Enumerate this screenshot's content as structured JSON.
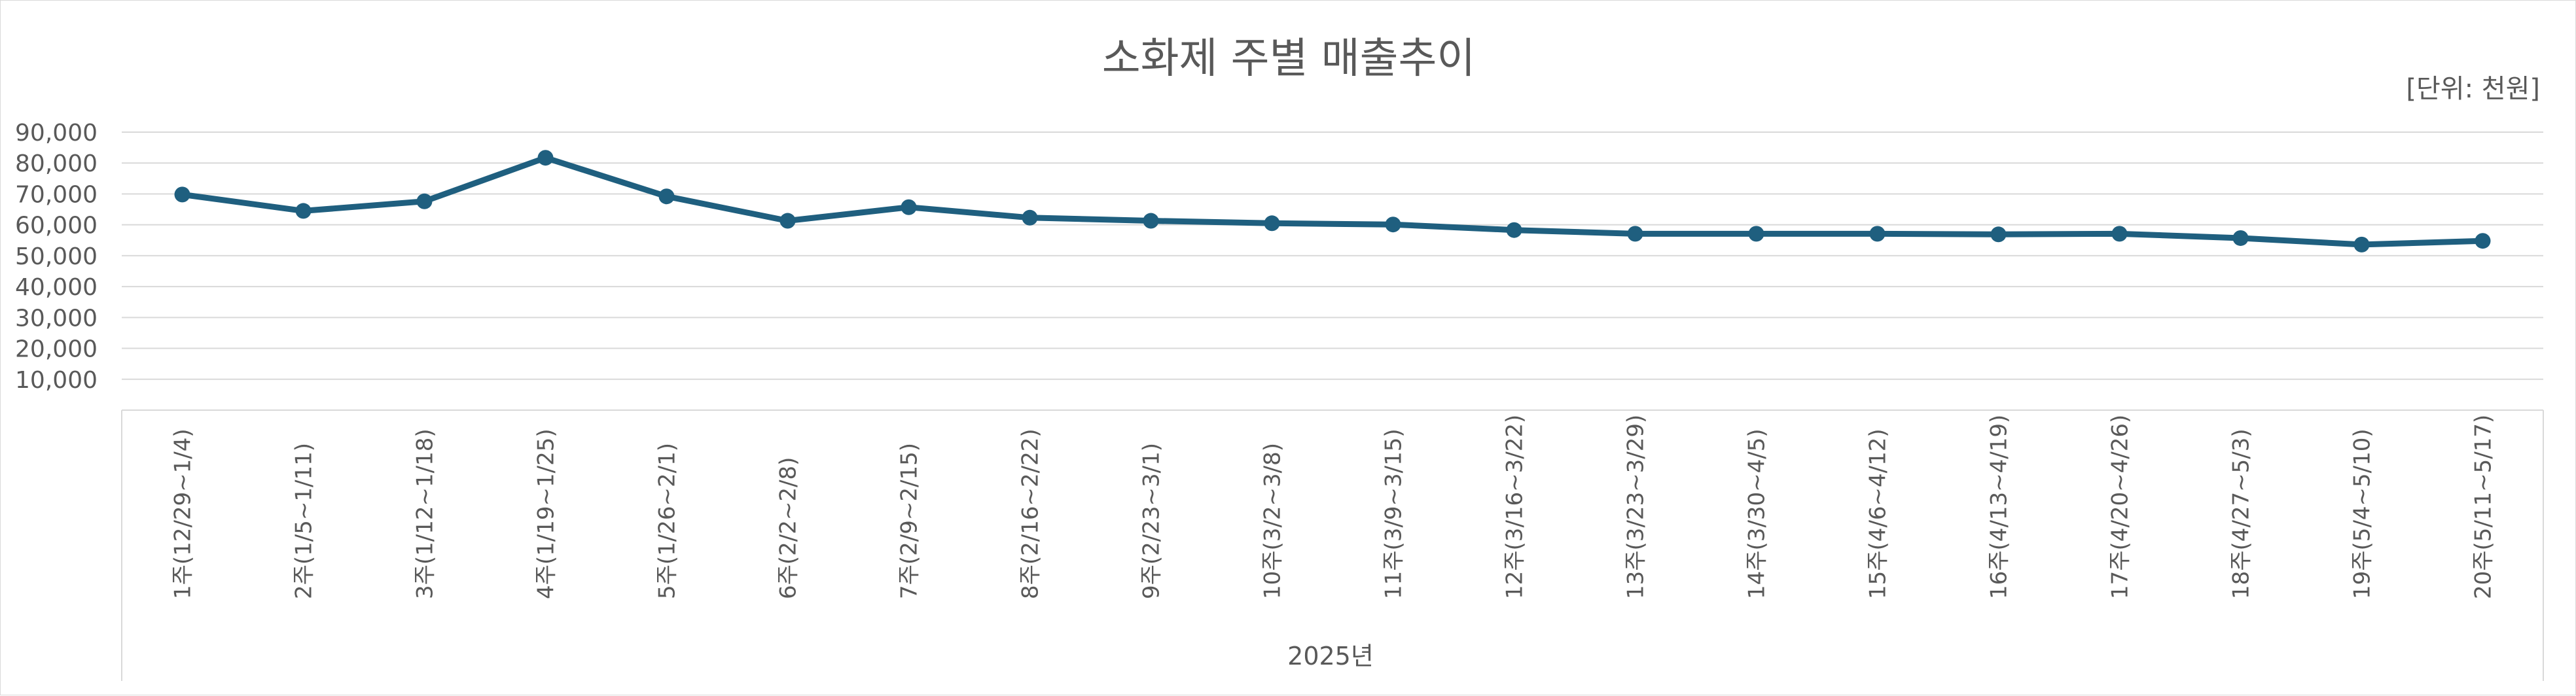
{
  "chart_data": {
    "type": "line",
    "title": "소화제 주별 매출추이",
    "unit_label": "[단위: 천원]",
    "xlabel": "2025년",
    "ylabel": "",
    "ylim": [
      0,
      90000
    ],
    "yticks": [
      10000,
      20000,
      30000,
      40000,
      50000,
      60000,
      70000,
      80000,
      90000
    ],
    "ytick_labels": [
      "10,000",
      "20,000",
      "30,000",
      "40,000",
      "50,000",
      "60,000",
      "70,000",
      "80,000",
      "90,000"
    ],
    "grid": true,
    "legend": "none",
    "categories": [
      "1주(12/29~1/4)",
      "2주(1/5~1/11)",
      "3주(1/12~1/18)",
      "4주(1/19~1/25)",
      "5주(1/26~2/1)",
      "6주(2/2~2/8)",
      "7주(2/9~2/15)",
      "8주(2/16~2/22)",
      "9주(2/23~3/1)",
      "10주(3/2~3/8)",
      "11주(3/9~3/15)",
      "12주(3/16~3/22)",
      "13주(3/23~3/29)",
      "14주(3/30~4/5)",
      "15주(4/6~4/12)",
      "16주(4/13~4/19)",
      "17주(4/20~4/26)",
      "18주(4/27~5/3)",
      "19주(5/4~5/10)",
      "20주(5/11~5/17)"
    ],
    "series": [
      {
        "values": [
          69800,
          64500,
          67600,
          81700,
          69200,
          61300,
          65700,
          62300,
          61300,
          60500,
          60100,
          58300,
          57100,
          57100,
          57100,
          56900,
          57100,
          55700,
          53600,
          54800
        ]
      }
    ],
    "colors": {
      "line": "#1f5f7f",
      "grid": "#d9d9d9",
      "text": "#595959",
      "title": "#595959"
    }
  }
}
